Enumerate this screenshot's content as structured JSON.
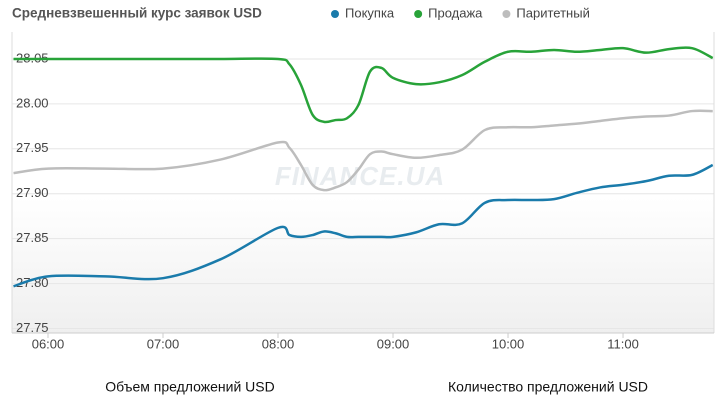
{
  "chart_data": {
    "type": "line",
    "title": "Средневзвешенный курс заявок USD",
    "watermark": "FINANCE.UA",
    "bottom_labels": [
      "Объем предложений USD",
      "Количество предложений USD"
    ],
    "x": [
      5.7,
      6.0,
      6.5,
      7.0,
      7.5,
      8.0,
      8.1,
      8.2,
      8.3,
      8.4,
      8.5,
      8.6,
      8.7,
      8.8,
      8.9,
      9.0,
      9.2,
      9.4,
      9.6,
      9.8,
      10.0,
      10.2,
      10.4,
      10.6,
      10.8,
      11.0,
      11.2,
      11.4,
      11.6,
      11.78
    ],
    "series": [
      {
        "name": "Покупка",
        "color": "#1a7bab",
        "values": [
          27.797,
          27.808,
          27.808,
          27.806,
          27.827,
          27.862,
          27.854,
          27.852,
          27.854,
          27.858,
          27.856,
          27.852,
          27.852,
          27.852,
          27.852,
          27.852,
          27.857,
          27.866,
          27.867,
          27.89,
          27.893,
          27.893,
          27.894,
          27.901,
          27.907,
          27.91,
          27.914,
          27.92,
          27.921,
          27.932
        ]
      },
      {
        "name": "Продажа",
        "color": "#28a339",
        "values": [
          28.05,
          28.05,
          28.05,
          28.05,
          28.05,
          28.05,
          28.044,
          28.021,
          27.988,
          27.98,
          27.982,
          27.984,
          27.999,
          28.036,
          28.04,
          28.029,
          28.022,
          28.024,
          28.032,
          28.047,
          28.058,
          28.058,
          28.06,
          28.058,
          28.06,
          28.062,
          28.057,
          28.061,
          28.062,
          28.051
        ]
      },
      {
        "name": "Паритетный",
        "color": "#bdbdbd",
        "values": [
          27.923,
          27.928,
          27.928,
          27.928,
          27.938,
          27.957,
          27.951,
          27.932,
          27.91,
          27.904,
          27.907,
          27.913,
          27.927,
          27.944,
          27.947,
          27.944,
          27.94,
          27.943,
          27.949,
          27.971,
          27.974,
          27.974,
          27.976,
          27.978,
          27.981,
          27.984,
          27.986,
          27.987,
          27.992,
          27.992
        ]
      }
    ],
    "xlim": [
      5.687,
      11.791
    ],
    "xticks": [
      {
        "value": 6,
        "label": "06:00"
      },
      {
        "value": 7,
        "label": "07:00"
      },
      {
        "value": 8,
        "label": "08:00"
      },
      {
        "value": 9,
        "label": "09:00"
      },
      {
        "value": 10,
        "label": "10:00"
      },
      {
        "value": 11,
        "label": "11:00"
      }
    ],
    "ylim": [
      27.745,
      28.08
    ],
    "yticks": [
      27.75,
      {
        "value": 27.8,
        "label": "27.80"
      },
      27.85,
      {
        "value": 27.9,
        "label": "27.90"
      },
      27.95,
      {
        "value": 28,
        "label": "28.00"
      },
      28.05
    ],
    "grid": true
  }
}
